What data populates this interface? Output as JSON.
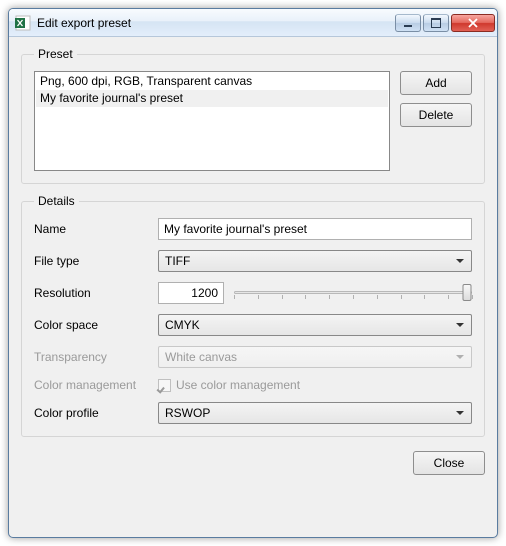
{
  "window": {
    "title": "Edit export preset",
    "icon_primary_color": "#207245",
    "icon_accent_color": "#ffffff"
  },
  "preset_group": {
    "legend": "Preset",
    "items": [
      {
        "label": "Png, 600 dpi, RGB, Transparent canvas",
        "selected": false
      },
      {
        "label": "My favorite journal's preset",
        "selected": true
      }
    ],
    "add_button": "Add",
    "delete_button": "Delete"
  },
  "details_group": {
    "legend": "Details",
    "name_label": "Name",
    "name_value": "My favorite journal's preset",
    "filetype_label": "File type",
    "filetype_value": "TIFF",
    "resolution_label": "Resolution",
    "resolution_value": "1200",
    "resolution_slider": {
      "min": 0,
      "max": 1,
      "value": 0.98,
      "ticks": 11
    },
    "colorspace_label": "Color space",
    "colorspace_value": "CMYK",
    "transparency_label": "Transparency",
    "transparency_value": "White canvas",
    "transparency_disabled": true,
    "colormgmt_label": "Color management",
    "colormgmt_checkbox_label": "Use color management",
    "colormgmt_checked": true,
    "colormgmt_disabled": true,
    "colorprofile_label": "Color profile",
    "colorprofile_value": "RSWOP"
  },
  "footer": {
    "close_button": "Close"
  },
  "colors": {
    "window_bg": "#f0f0f0",
    "border": "#d5d5d5",
    "disabled_text": "#9a9a9a"
  }
}
